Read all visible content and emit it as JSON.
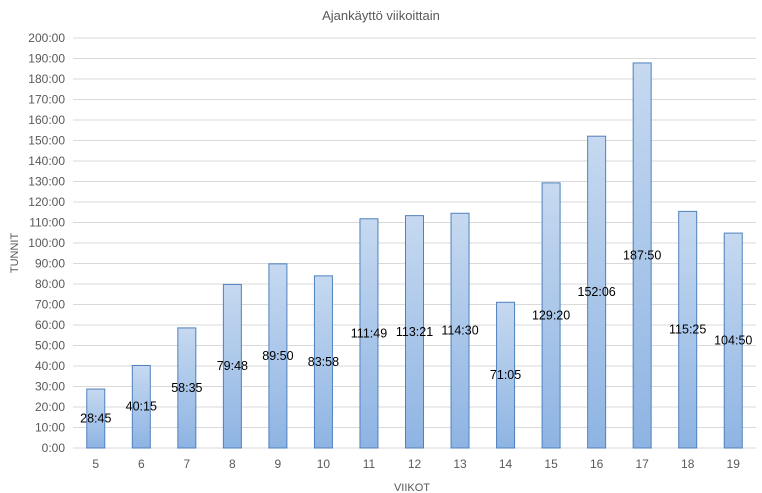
{
  "chart_data": {
    "type": "bar",
    "title": "Ajankäyttö viikoittain",
    "xlabel": "VIIKOT",
    "ylabel": "TUNNIT",
    "categories": [
      "5",
      "6",
      "7",
      "8",
      "9",
      "10",
      "11",
      "12",
      "13",
      "14",
      "15",
      "16",
      "17",
      "18",
      "19"
    ],
    "values": [
      28.75,
      40.25,
      58.58,
      79.8,
      89.83,
      83.97,
      111.82,
      113.35,
      114.5,
      71.08,
      129.33,
      152.1,
      187.83,
      115.42,
      104.83
    ],
    "data_labels": [
      "28:45",
      "40:15",
      "58:35",
      "79:48",
      "89:50",
      "83:58",
      "111:49",
      "113:21",
      "114:30",
      "71:05",
      "129:20",
      "152:06",
      "187:50",
      "115:25",
      "104:50"
    ],
    "y_tick_labels": [
      "0:00",
      "10:00",
      "20:00",
      "30:00",
      "40:00",
      "50:00",
      "60:00",
      "70:00",
      "80:00",
      "90:00",
      "100:00",
      "110:00",
      "120:00",
      "130:00",
      "140:00",
      "150:00",
      "160:00",
      "170:00",
      "180:00",
      "190:00",
      "200:00"
    ],
    "ylim": [
      0,
      200
    ],
    "ytick_step": 10,
    "grid": true,
    "legend": "none",
    "colors": {
      "bar_top": "#c6d9f0",
      "bar_bottom": "#8eb4e3",
      "bar_edge": "#4f81bd",
      "grid": "#d9d9d9",
      "text": "#595959"
    }
  }
}
